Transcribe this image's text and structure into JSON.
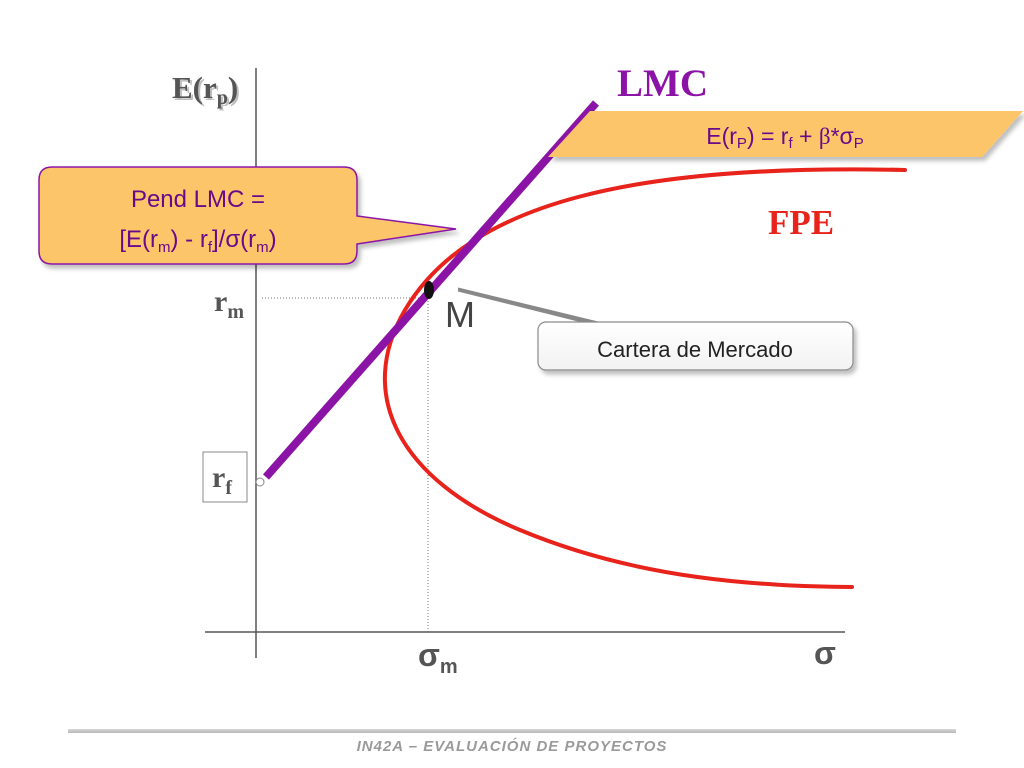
{
  "axes": {
    "y_label_base": "E(r",
    "y_label_sub": "p",
    "y_label_close": ")",
    "x_sigma": "σ",
    "x_sigma_m_base": "σ",
    "x_sigma_m_sub": "m",
    "rm_base": "r",
    "rm_sub": "m",
    "rf_base": "r",
    "rf_sub": "f"
  },
  "curves": {
    "lmc_label": "LMC",
    "fpe_label": "FPE",
    "point_label": "M"
  },
  "callouts": {
    "equation": {
      "p1": "E(r",
      "s1": "P",
      "p2": ") = r",
      "s2": "f",
      "p3": " + ",
      "beta": "β",
      "p4": "*σ",
      "s3": "P"
    },
    "slope": {
      "line1": "Pend LMC =",
      "p1": "[E(r",
      "s1": "m",
      "p2": ") - r",
      "s2": "f",
      "p3": "]/σ(r",
      "s3": "m",
      "p4": ")"
    },
    "market": "Cartera de Mercado"
  },
  "footer": "IN42A – EVALUACIÓN DE PROYECTOS",
  "colors": {
    "lmc": "#8b14a6",
    "fpe": "#e8231b",
    "callout_fill": "#fcc56a",
    "callout_stroke": "#8b14a6",
    "axis": "#555555"
  }
}
